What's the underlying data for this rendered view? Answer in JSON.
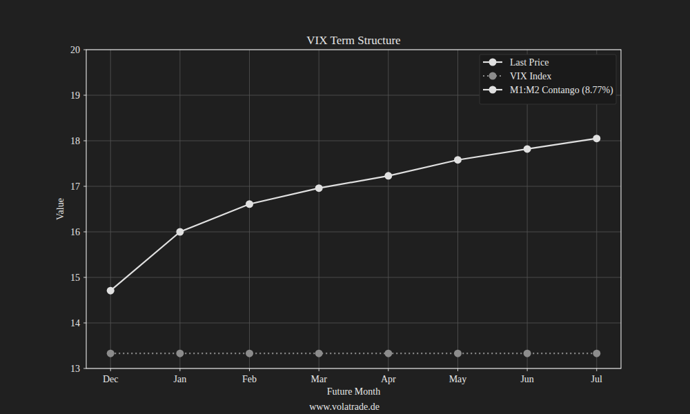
{
  "chart_data": {
    "type": "line",
    "title": "VIX Term Structure",
    "x_label": "Future Month",
    "y_label": "Value",
    "footer": "www.volatrade.de",
    "categories": [
      "Dec",
      "Jan",
      "Feb",
      "Mar",
      "Apr",
      "May",
      "Jun",
      "Jul"
    ],
    "series": [
      {
        "name": "Last Price",
        "color": "#e0e0e0",
        "marker": "circle",
        "line_style": "solid",
        "values": [
          14.71,
          16.0,
          16.61,
          16.96,
          17.23,
          17.58,
          17.82,
          18.05
        ]
      },
      {
        "name": "VIX Index",
        "color": "#8c8c8c",
        "marker": "circle",
        "line_style": "dotted",
        "values": [
          13.33,
          13.33,
          13.33,
          13.33,
          13.33,
          13.33,
          13.33,
          13.33
        ]
      },
      {
        "name": "M1:M2 Contango (8.77%)",
        "color": "#e0e0e0",
        "marker": "circle",
        "line_style": "solid",
        "values": [
          null,
          null,
          null,
          null,
          null,
          null,
          null,
          null
        ]
      }
    ],
    "ylim": [
      13,
      20
    ],
    "yticks": [
      13,
      14,
      15,
      16,
      17,
      18,
      19,
      20
    ],
    "grid": true,
    "legend": "top-right"
  }
}
